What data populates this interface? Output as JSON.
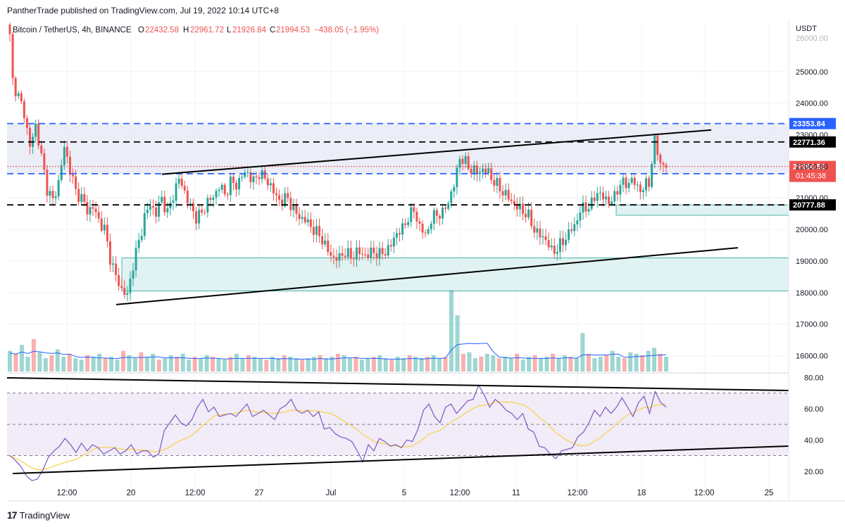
{
  "header": {
    "published": "PantherTrade published on TradingView.com, Jul 19, 2022 10:14 UTC+8"
  },
  "legend": {
    "symbol": "Bitcoin / TetherUS, 4h, BINANCE",
    "o_label": "O",
    "o_value": "22432.58",
    "h_label": "H",
    "h_value": "22961.72",
    "l_label": "L",
    "l_value": "21926.84",
    "c_label": "C",
    "c_value": "21994.53",
    "change": "−438.05 (−1.95%)"
  },
  "footer": {
    "brand": "TradingView",
    "logo": "17"
  },
  "colors": {
    "up": "#26a69a",
    "down": "#ef5350",
    "blue_line": "#2962ff",
    "zone_blue": "#e8eaf6",
    "zone_green": "#e0f2f1",
    "rsi": "#7e57c2",
    "rsi_ma": "#f7d046"
  },
  "chart_data": {
    "type": "candlestick",
    "price_axis": {
      "unit": "USDT",
      "ticks": [
        "25000.00",
        "24000.00",
        "23000.00",
        "22000.00",
        "21000.00",
        "20000.00",
        "19000.00",
        "18000.00",
        "17000.00",
        "16000.00"
      ],
      "top_partial": "26000.00",
      "range": [
        15500,
        26600
      ]
    },
    "time_axis": {
      "ticks": [
        "12:00",
        "20",
        "12:00",
        "27",
        "Jul",
        "5",
        "12:00",
        "11",
        "12:00",
        "18",
        "12:00",
        "25"
      ]
    },
    "levels": [
      {
        "price": 23353.84,
        "label": "23353.84",
        "style": "blue-dashed"
      },
      {
        "price": 22771.36,
        "label": "22771.36",
        "style": "black-dashed"
      },
      {
        "price": 21765.29,
        "label": "21765.29",
        "style": "blue-dashed"
      },
      {
        "price": 20777.88,
        "label": "20777.88",
        "style": "black-dashed"
      }
    ],
    "last_price": {
      "price": 21994.53,
      "label": "21994.53",
      "countdown": "01:45:38"
    },
    "zones": [
      {
        "from": 21765.29,
        "to": 23353.84,
        "color": "blue"
      },
      {
        "from": 18050,
        "to": 19100,
        "color": "green"
      },
      {
        "from": 20450,
        "to": 20777.88,
        "color": "green"
      }
    ],
    "trendlines": [
      {
        "from_price": 21750,
        "to_price": 23150
      },
      {
        "from_price": 17620,
        "to_price": 19420
      }
    ],
    "price_path": [
      [
        0,
        26100
      ],
      [
        1,
        24700
      ],
      [
        3,
        24200
      ],
      [
        5,
        23700
      ],
      [
        7,
        22600
      ],
      [
        9,
        23300
      ],
      [
        11,
        22300
      ],
      [
        13,
        21300
      ],
      [
        15,
        20900
      ],
      [
        17,
        21500
      ],
      [
        19,
        22600
      ],
      [
        21,
        21900
      ],
      [
        23,
        21200
      ],
      [
        25,
        21000
      ],
      [
        27,
        20600
      ],
      [
        29,
        20700
      ],
      [
        31,
        20300
      ],
      [
        33,
        20000
      ],
      [
        35,
        19100
      ],
      [
        37,
        18500
      ],
      [
        39,
        18100
      ],
      [
        41,
        17900
      ],
      [
        43,
        18900
      ],
      [
        45,
        19600
      ],
      [
        47,
        20400
      ],
      [
        49,
        20800
      ],
      [
        51,
        20500
      ],
      [
        53,
        21000
      ],
      [
        55,
        20500
      ],
      [
        57,
        21100
      ],
      [
        59,
        21600
      ],
      [
        61,
        21200
      ],
      [
        63,
        20700
      ],
      [
        65,
        20400
      ],
      [
        67,
        20500
      ],
      [
        69,
        20900
      ],
      [
        71,
        21000
      ],
      [
        73,
        21400
      ],
      [
        75,
        21100
      ],
      [
        77,
        21500
      ],
      [
        79,
        21400
      ],
      [
        81,
        21700
      ],
      [
        83,
        21800
      ],
      [
        85,
        21500
      ],
      [
        87,
        21800
      ],
      [
        89,
        21600
      ],
      [
        91,
        21400
      ],
      [
        93,
        21000
      ],
      [
        95,
        20900
      ],
      [
        97,
        21000
      ],
      [
        99,
        20600
      ],
      [
        101,
        20400
      ],
      [
        103,
        20300
      ],
      [
        105,
        20100
      ],
      [
        107,
        19900
      ],
      [
        109,
        19700
      ],
      [
        111,
        19300
      ],
      [
        113,
        19100
      ],
      [
        115,
        19100
      ],
      [
        117,
        19300
      ],
      [
        119,
        19100
      ],
      [
        121,
        19300
      ],
      [
        123,
        19200
      ],
      [
        125,
        19200
      ],
      [
        127,
        19300
      ],
      [
        129,
        19200
      ],
      [
        131,
        19300
      ],
      [
        133,
        19500
      ],
      [
        135,
        19900
      ],
      [
        137,
        20000
      ],
      [
        139,
        20400
      ],
      [
        141,
        20600
      ],
      [
        143,
        20100
      ],
      [
        145,
        19800
      ],
      [
        147,
        20300
      ],
      [
        149,
        20500
      ],
      [
        151,
        20500
      ],
      [
        153,
        20900
      ],
      [
        155,
        21400
      ],
      [
        157,
        22300
      ],
      [
        159,
        22100
      ],
      [
        161,
        21900
      ],
      [
        163,
        21800
      ],
      [
        165,
        21900
      ],
      [
        167,
        21800
      ],
      [
        169,
        21500
      ],
      [
        171,
        21300
      ],
      [
        173,
        21100
      ],
      [
        175,
        20900
      ],
      [
        177,
        20700
      ],
      [
        179,
        20600
      ],
      [
        181,
        20400
      ],
      [
        183,
        20000
      ],
      [
        185,
        19800
      ],
      [
        187,
        19700
      ],
      [
        189,
        19300
      ],
      [
        191,
        19400
      ],
      [
        193,
        19600
      ],
      [
        195,
        19900
      ],
      [
        197,
        20100
      ],
      [
        199,
        20600
      ],
      [
        201,
        20700
      ],
      [
        203,
        20800
      ],
      [
        205,
        21200
      ],
      [
        207,
        21000
      ],
      [
        209,
        20900
      ],
      [
        211,
        21000
      ],
      [
        213,
        21500
      ],
      [
        215,
        21400
      ],
      [
        217,
        21600
      ],
      [
        219,
        21300
      ],
      [
        221,
        21300
      ],
      [
        223,
        21500
      ],
      [
        225,
        22800
      ],
      [
        227,
        22100
      ],
      [
        229,
        21994
      ]
    ],
    "volume": [
      14,
      12,
      18,
      10,
      22,
      13,
      9,
      11,
      15,
      10,
      12,
      9,
      8,
      11,
      10,
      12,
      9,
      10,
      8,
      14,
      11,
      9,
      13,
      10,
      12,
      8,
      9,
      11,
      10,
      12,
      8,
      10,
      9,
      11,
      10,
      9,
      8,
      10,
      12,
      9,
      11,
      10,
      9,
      8,
      10,
      9,
      11,
      10,
      9,
      8,
      9,
      10,
      11,
      9,
      10,
      12,
      11,
      9,
      10,
      8,
      9,
      10,
      11,
      9,
      8,
      10,
      9,
      11,
      10,
      9,
      10,
      11,
      9,
      10,
      55,
      38,
      12,
      13,
      9,
      10,
      12,
      11,
      9,
      10,
      9,
      12,
      8,
      10,
      11,
      9,
      10,
      12,
      9,
      11,
      10,
      9,
      26,
      12,
      9,
      10,
      11,
      14,
      10,
      9,
      13,
      12,
      11,
      14,
      16,
      12,
      10
    ],
    "rsi": {
      "ticks": [
        "80.00",
        "60.00",
        "40.00",
        "20.00"
      ],
      "bands": [
        70,
        50,
        30
      ],
      "range": [
        10,
        82
      ],
      "values": [
        30,
        27,
        23,
        17,
        14,
        15,
        21,
        29,
        33,
        36,
        41,
        37,
        32,
        38,
        33,
        37,
        35,
        31,
        33,
        35,
        31,
        33,
        37,
        31,
        33,
        33,
        29,
        31,
        46,
        51,
        56,
        51,
        49,
        53,
        61,
        66,
        58,
        61,
        55,
        56,
        57,
        55,
        59,
        63,
        55,
        57,
        59,
        56,
        53,
        60,
        62,
        66,
        59,
        57,
        59,
        55,
        58,
        47,
        48,
        44,
        42,
        41,
        39,
        33,
        26,
        37,
        33,
        41,
        39,
        36,
        37,
        35,
        40,
        39,
        47,
        59,
        63,
        55,
        51,
        61,
        63,
        57,
        61,
        65,
        66,
        75,
        69,
        61,
        66,
        63,
        59,
        57,
        53,
        57,
        47,
        45,
        36,
        35,
        31,
        28,
        33,
        34,
        35,
        42,
        45,
        51,
        59,
        55,
        61,
        57,
        61,
        67,
        61,
        55,
        64,
        68,
        57,
        71,
        64,
        61
      ]
    }
  }
}
